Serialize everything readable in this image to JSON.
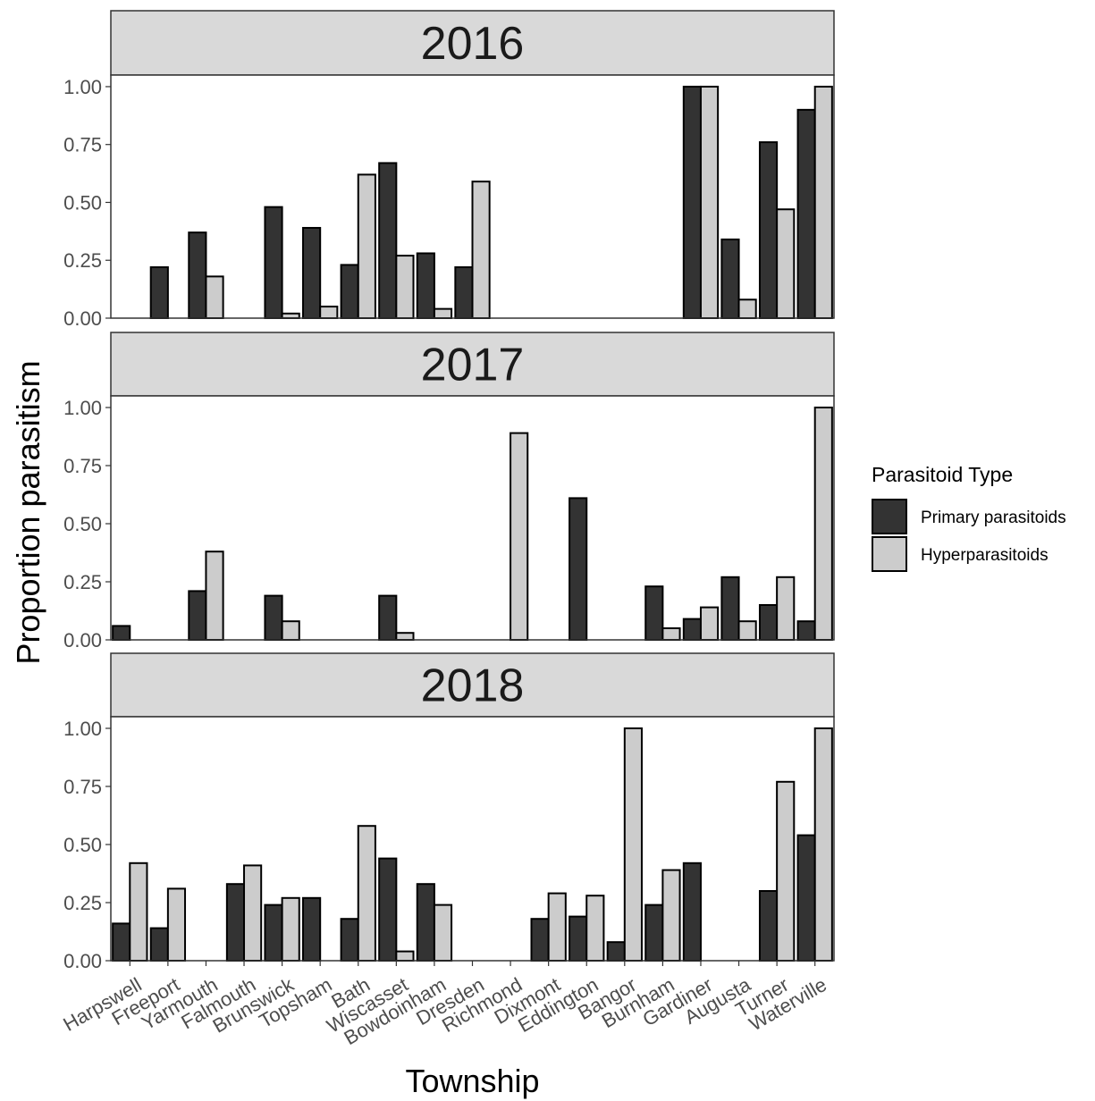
{
  "chart_data": {
    "type": "bar",
    "layout": "faceted-vertical",
    "xlabel": "Township",
    "ylabel": "Proportion parasitism",
    "ylim": [
      0,
      1.05
    ],
    "yticks": [
      0,
      0.25,
      0.5,
      0.75,
      1
    ],
    "ytick_labels": [
      "0.00",
      "0.25",
      "0.50",
      "0.75",
      "1.00"
    ],
    "grid": false,
    "categories": [
      "Harpswell",
      "Freeport",
      "Yarmouth",
      "Falmouth",
      "Brunswick",
      "Topsham",
      "Bath",
      "Wiscasset",
      "Bowdoinham",
      "Dresden",
      "Richmond",
      "Dixmont",
      "Eddington",
      "Bangor",
      "Burnham",
      "Gardiner",
      "Augusta",
      "Turner",
      "Waterville"
    ],
    "legend": {
      "title": "Parasitoid Type",
      "position": "right",
      "entries": [
        {
          "name": "Primary parasitoids",
          "color": "#333333"
        },
        {
          "name": "Hyperparasitoids",
          "color": "#cccccc"
        }
      ]
    },
    "facets": [
      {
        "label": "2016",
        "series": [
          {
            "name": "Primary parasitoids",
            "values": [
              null,
              0.22,
              0.37,
              null,
              0.48,
              0.39,
              0.23,
              0.67,
              0.28,
              0.22,
              null,
              null,
              null,
              null,
              null,
              1.0,
              0.34,
              0.76,
              0.9
            ]
          },
          {
            "name": "Hyperparasitoids",
            "values": [
              null,
              0.0,
              0.18,
              null,
              0.02,
              0.05,
              0.62,
              0.27,
              0.04,
              0.59,
              null,
              null,
              null,
              null,
              null,
              1.0,
              0.08,
              0.47,
              1.0
            ]
          }
        ]
      },
      {
        "label": "2017",
        "series": [
          {
            "name": "Primary parasitoids",
            "values": [
              0.06,
              null,
              0.21,
              null,
              0.19,
              null,
              null,
              0.19,
              null,
              null,
              0.0,
              null,
              0.61,
              null,
              0.23,
              0.09,
              0.27,
              0.15,
              0.08
            ]
          },
          {
            "name": "Hyperparasitoids",
            "values": [
              0.0,
              null,
              0.38,
              null,
              0.08,
              null,
              null,
              0.03,
              null,
              null,
              0.89,
              null,
              0.0,
              null,
              0.05,
              0.14,
              0.08,
              0.27,
              1.0
            ]
          }
        ]
      },
      {
        "label": "2018",
        "series": [
          {
            "name": "Primary parasitoids",
            "values": [
              0.16,
              0.14,
              null,
              0.33,
              0.24,
              0.27,
              0.18,
              0.44,
              0.33,
              null,
              null,
              0.18,
              0.19,
              0.08,
              0.24,
              0.42,
              null,
              0.3,
              0.54
            ]
          },
          {
            "name": "Hyperparasitoids",
            "values": [
              0.42,
              0.31,
              null,
              0.41,
              0.27,
              0.0,
              0.58,
              0.04,
              0.24,
              null,
              null,
              0.29,
              0.28,
              1.0,
              0.39,
              0.0,
              null,
              0.77,
              1.0
            ]
          }
        ]
      }
    ]
  }
}
